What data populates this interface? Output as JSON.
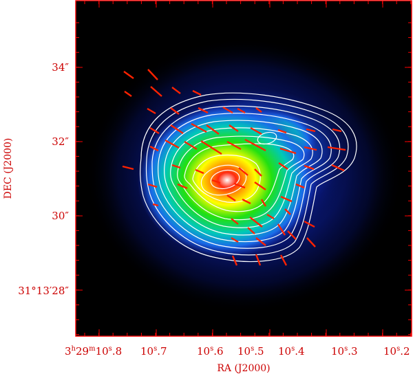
{
  "figure": {
    "x_axis": {
      "title": "RA (J2000)",
      "ticks": [
        {
          "hours": "3",
          "minutes": "29",
          "seconds": "10",
          "frac": ".8"
        },
        {
          "seconds": "10",
          "frac": ".7"
        },
        {
          "seconds": "10",
          "frac": ".6"
        },
        {
          "seconds": "10",
          "frac": ".5"
        },
        {
          "seconds": "10",
          "frac": ".4"
        },
        {
          "seconds": "10",
          "frac": ".3"
        },
        {
          "seconds": "10",
          "frac": ".2"
        }
      ]
    },
    "y_axis": {
      "title": "DEC (J2000)",
      "ticks": [
        "31°13′28″",
        "30″",
        "32″",
        "34″"
      ]
    },
    "colors": {
      "frame": "#ff0000",
      "labels": "#cc0000",
      "contours": "#ffffff",
      "vectors": "#ff0000",
      "background": "#000000"
    },
    "colormap": "black-blue-cyan-green-yellow-red-white",
    "contour_levels": 10,
    "polarization_vectors": 60
  }
}
